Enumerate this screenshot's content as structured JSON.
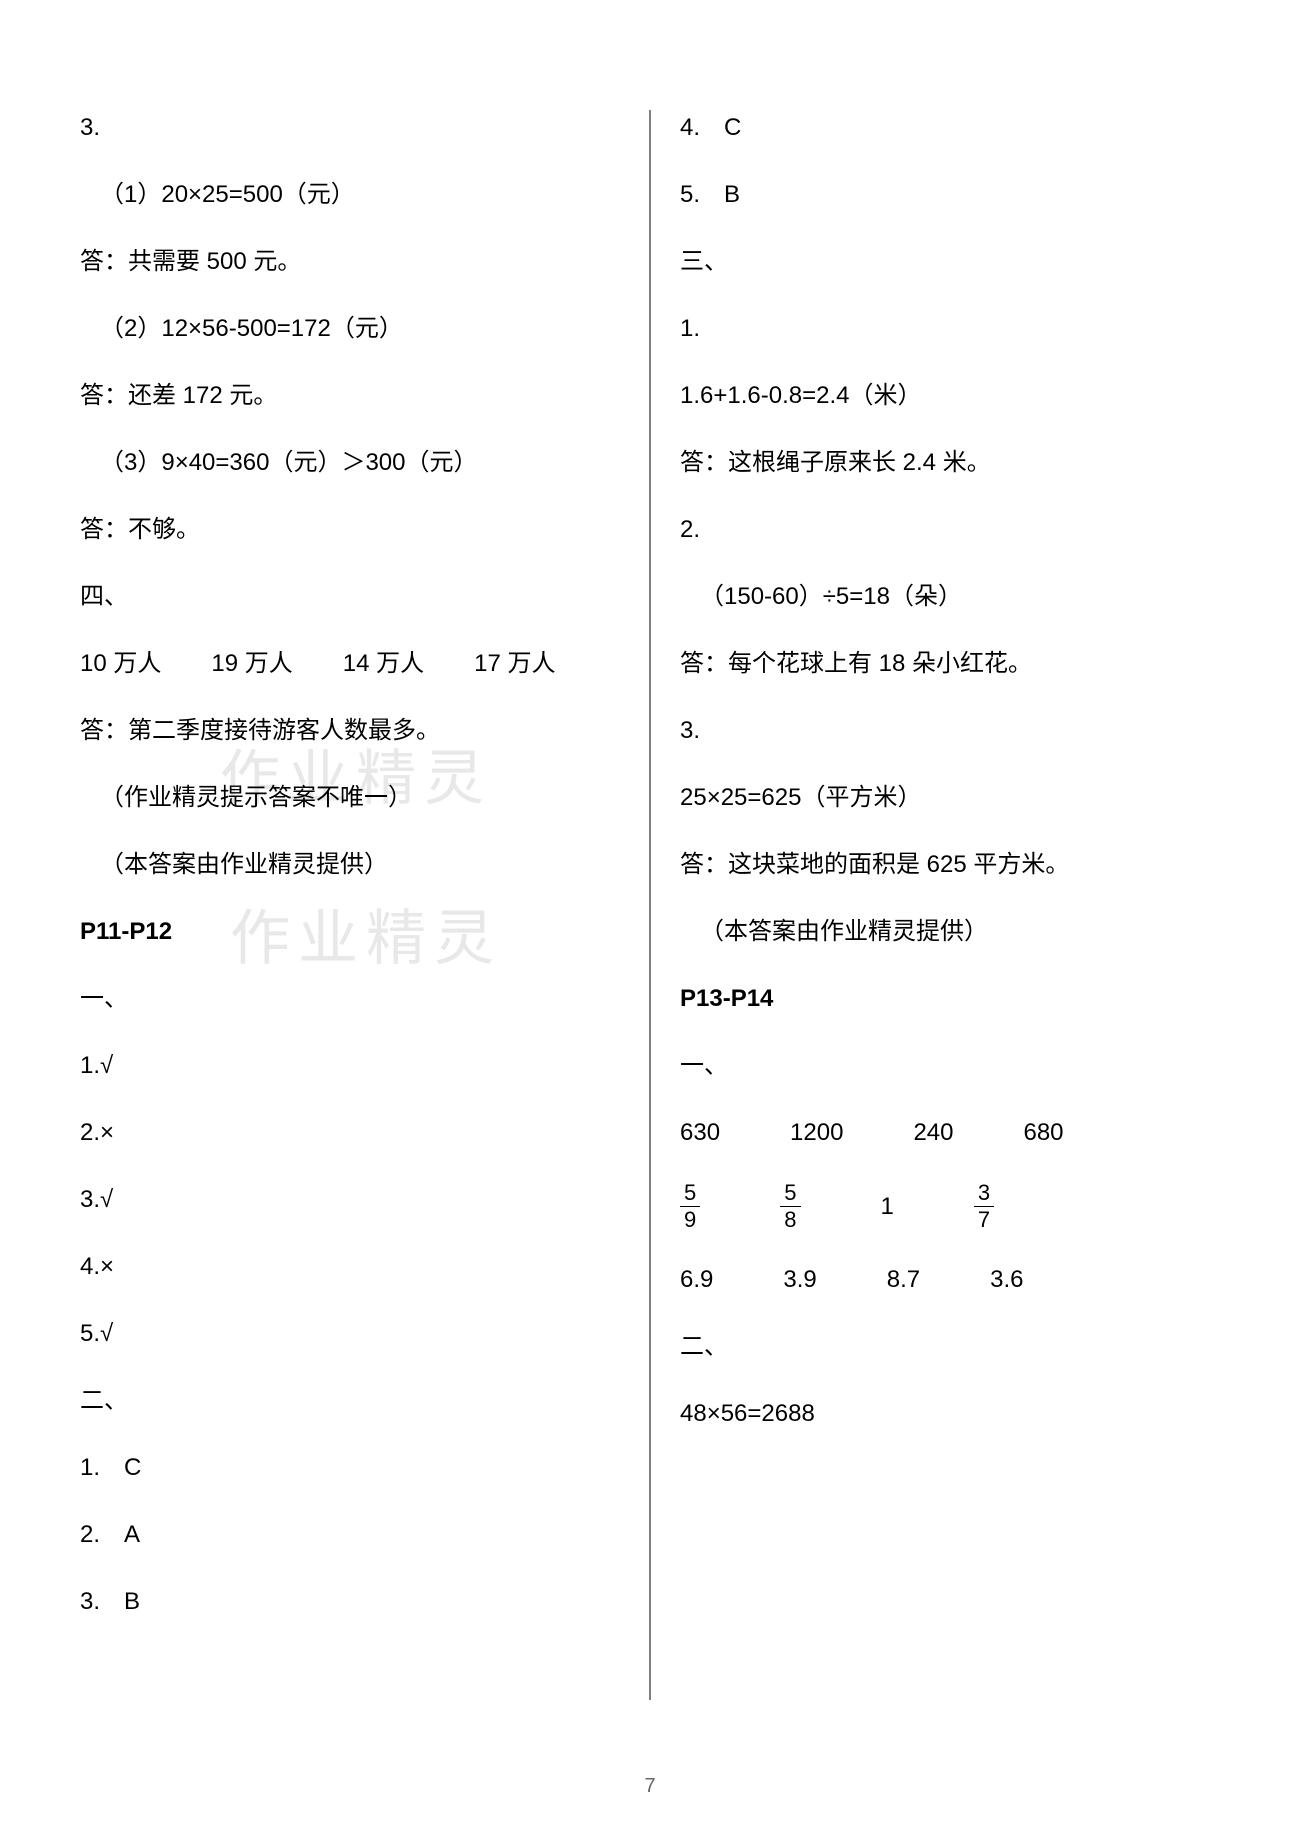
{
  "page_number": "7",
  "left": {
    "l1": "3.",
    "l2": "（1）20×25=500（元）",
    "l3": "答：共需要 500 元。",
    "l4": "（2）12×56-500=172（元）",
    "l5": "答：还差 172 元。",
    "l6": "（3）9×40=360（元）＞300（元）",
    "l7": "答：不够。",
    "l8": "四、",
    "l9a": "10 万人",
    "l9b": "19 万人",
    "l9c": "14 万人",
    "l9d": "17 万人",
    "l10": "答：第二季度接待游客人数最多。",
    "l11": "（作业精灵提示答案不唯一）",
    "l12": "（本答案由作业精灵提供）",
    "l13": "P11-P12",
    "l14": "一、",
    "l15": "1.√",
    "l16": "2.×",
    "l17": "3.√",
    "l18": "4.×",
    "l19": "5.√",
    "l20": "二、",
    "l21": "1.　C",
    "l22": "2.　A",
    "l23": "3.　B"
  },
  "right": {
    "r1": "4.　C",
    "r2": "5.　B",
    "r3": "三、",
    "r4": "1.",
    "r5": "1.6+1.6-0.8=2.4（米）",
    "r6": "答：这根绳子原来长 2.4 米。",
    "r7": "2.",
    "r8": "（150-60）÷5=18（朵）",
    "r9": "答：每个花球上有 18 朵小红花。",
    "r10": "3.",
    "r11": "25×25=625（平方米）",
    "r12": "答：这块菜地的面积是 625 平方米。",
    "r13": "（本答案由作业精灵提供）",
    "r14": "P13-P14",
    "r15": "一、",
    "r16a": "630",
    "r16b": "1200",
    "r16c": "240",
    "r16d": "680",
    "frac1_num": "5",
    "frac1_den": "9",
    "frac2_num": "5",
    "frac2_den": "8",
    "frac_mid": "1",
    "frac3_num": "3",
    "frac3_den": "7",
    "r18a": "6.9",
    "r18b": "3.9",
    "r18c": "8.7",
    "r18d": "3.6",
    "r19": "二、",
    "r20": "48×56=2688"
  },
  "watermark": "作业精灵"
}
